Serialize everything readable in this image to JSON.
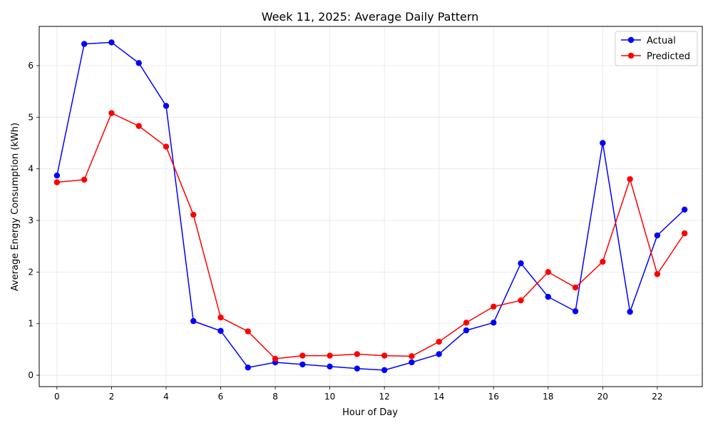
{
  "chart_data": {
    "type": "line",
    "title": "Week 11, 2025: Average Daily Pattern",
    "xlabel": "Hour of Day",
    "ylabel": "Average Energy Consumption (kWh)",
    "x": [
      0,
      1,
      2,
      3,
      4,
      5,
      6,
      7,
      8,
      9,
      10,
      11,
      12,
      13,
      14,
      15,
      16,
      17,
      18,
      19,
      20,
      21,
      22,
      23
    ],
    "xlim": [
      -0.65,
      23.65
    ],
    "ylim": [
      -0.22,
      6.76
    ],
    "xticks": [
      0,
      2,
      4,
      6,
      8,
      10,
      12,
      14,
      16,
      18,
      20,
      22
    ],
    "yticks": [
      0,
      1,
      2,
      3,
      4,
      5,
      6
    ],
    "grid": true,
    "legend_position": "top-right",
    "series": [
      {
        "name": "Actual",
        "color": "#0000ff",
        "values": [
          3.87,
          6.42,
          6.45,
          6.05,
          5.22,
          1.05,
          0.86,
          0.15,
          0.25,
          0.21,
          0.17,
          0.13,
          0.1,
          0.25,
          0.41,
          0.87,
          1.02,
          2.17,
          1.52,
          1.24,
          4.5,
          1.23,
          2.71,
          3.21
        ]
      },
      {
        "name": "Predicted",
        "color": "#ff0000",
        "values": [
          3.74,
          3.79,
          5.08,
          4.83,
          4.43,
          3.11,
          1.12,
          0.85,
          0.32,
          0.38,
          0.38,
          0.41,
          0.38,
          0.37,
          0.65,
          1.02,
          1.33,
          1.45,
          2.0,
          1.7,
          2.2,
          3.8,
          1.96,
          2.75
        ]
      }
    ]
  }
}
